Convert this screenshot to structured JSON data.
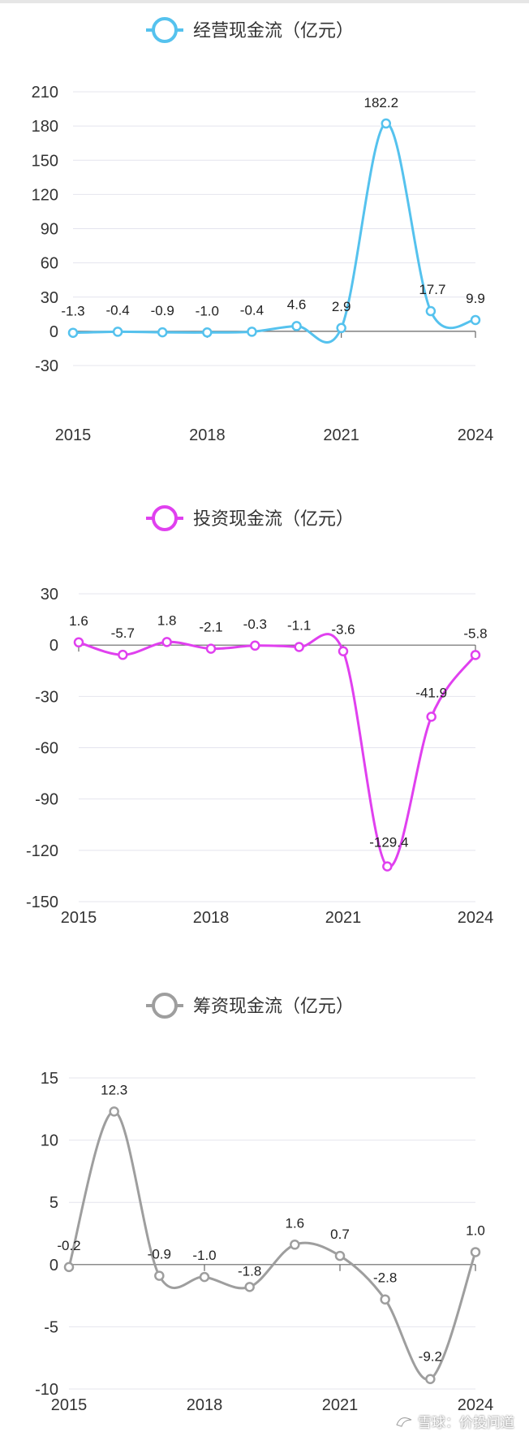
{
  "chart_data": [
    {
      "type": "line",
      "title": "经营现金流（亿元）",
      "legend": [
        "经营现金流（亿元）"
      ],
      "color": "#55c2ee",
      "x": [
        "2015",
        "2016",
        "2017",
        "2018",
        "2019",
        "2020",
        "2021",
        "2022",
        "2023",
        "2024"
      ],
      "x_tick_labels": [
        "2015",
        "2018",
        "2021",
        "2024"
      ],
      "values": [
        -1.3,
        -0.4,
        -0.9,
        -1.0,
        -0.4,
        4.6,
        2.9,
        182.2,
        17.7,
        9.9
      ],
      "value_labels": [
        "-1.3",
        "-0.4",
        "-0.9",
        "-1.0",
        "-0.4",
        "4.6",
        "2.9",
        "182.2",
        "17.7",
        "9.9"
      ],
      "ylim": [
        -30,
        210
      ],
      "y_ticks": [
        -30,
        0,
        30,
        60,
        90,
        120,
        150,
        180,
        210
      ],
      "grid": true
    },
    {
      "type": "line",
      "title": "投资现金流（亿元）",
      "legend": [
        "投资现金流（亿元）"
      ],
      "color": "#e040ef",
      "x": [
        "2015",
        "2016",
        "2017",
        "2018",
        "2019",
        "2020",
        "2021",
        "2022",
        "2023",
        "2024"
      ],
      "x_tick_labels": [
        "2015",
        "2018",
        "2021",
        "2024"
      ],
      "values": [
        1.6,
        -5.7,
        1.8,
        -2.1,
        -0.3,
        -1.1,
        -3.6,
        -129.4,
        -41.9,
        -5.8
      ],
      "value_labels": [
        "1.6",
        "-5.7",
        "1.8",
        "-2.1",
        "-0.3",
        "-1.1",
        "-3.6",
        "-129.4",
        "-41.9",
        "-5.8"
      ],
      "ylim": [
        -150,
        30
      ],
      "y_ticks": [
        -150,
        -120,
        -90,
        -60,
        -30,
        0,
        30
      ],
      "grid": true
    },
    {
      "type": "line",
      "title": "筹资现金流（亿元）",
      "legend": [
        "筹资现金流（亿元）"
      ],
      "color": "#9e9e9e",
      "x": [
        "2015",
        "2016",
        "2017",
        "2018",
        "2019",
        "2020",
        "2021",
        "2022",
        "2023",
        "2024"
      ],
      "x_tick_labels": [
        "2015",
        "2018",
        "2021",
        "2024"
      ],
      "values": [
        -0.2,
        12.3,
        -0.9,
        -1.0,
        -1.8,
        1.6,
        0.7,
        -2.8,
        -9.2,
        1.0
      ],
      "value_labels": [
        "-0.2",
        "12.3",
        "-0.9",
        "-1.0",
        "-1.8",
        "1.6",
        "0.7",
        "-2.8",
        "-9.2",
        "1.0"
      ],
      "ylim": [
        -10,
        15
      ],
      "y_ticks": [
        -10,
        -5,
        0,
        5,
        10,
        15
      ],
      "grid": true
    }
  ],
  "watermark": {
    "text": "雪球：价投问道",
    "icon": "xueqiu-logo-icon"
  }
}
